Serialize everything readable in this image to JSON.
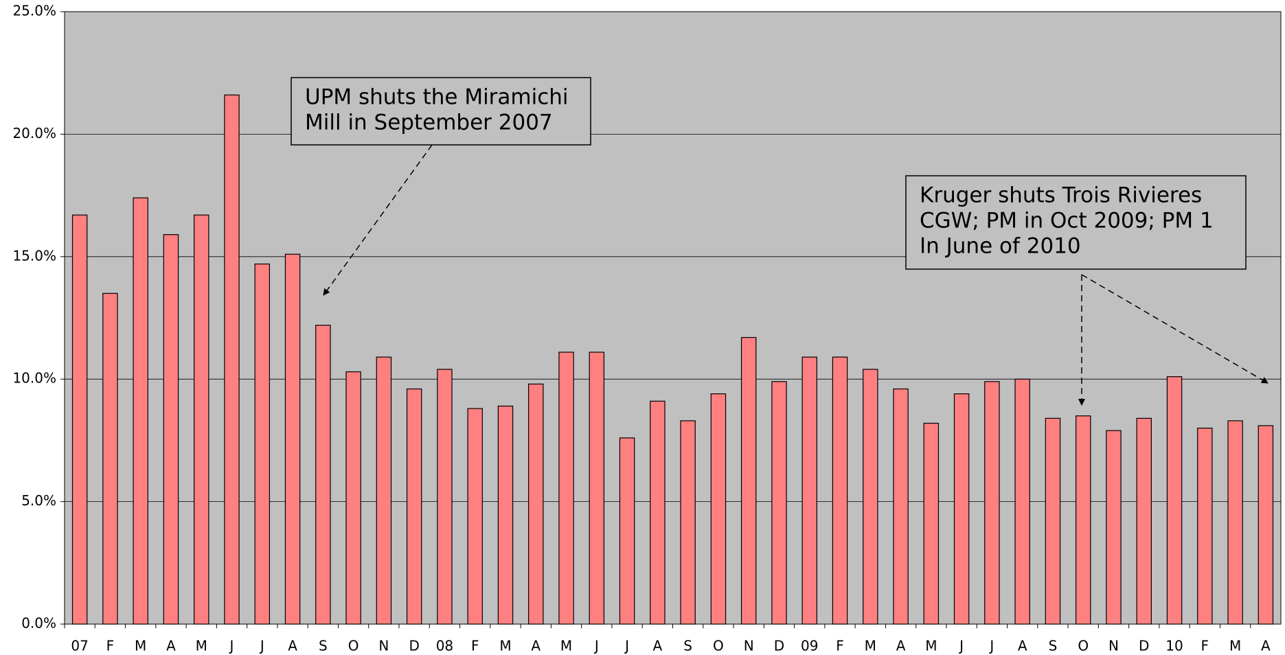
{
  "chart_data": {
    "type": "bar",
    "categories": [
      "07",
      "F",
      "M",
      "A",
      "M",
      "J",
      "J",
      "A",
      "S",
      "O",
      "N",
      "D",
      "08",
      "F",
      "M",
      "A",
      "M",
      "J",
      "J",
      "A",
      "S",
      "O",
      "N",
      "D",
      "09",
      "F",
      "M",
      "A",
      "M",
      "J",
      "J",
      "A",
      "S",
      "O",
      "N",
      "D",
      "10",
      "F",
      "M",
      "A"
    ],
    "values": [
      16.7,
      13.5,
      17.4,
      15.9,
      16.7,
      21.6,
      14.7,
      15.1,
      12.2,
      10.3,
      10.9,
      9.6,
      10.4,
      8.8,
      8.9,
      9.8,
      11.1,
      11.1,
      7.6,
      9.1,
      8.3,
      9.4,
      11.7,
      9.9,
      10.9,
      10.9,
      10.4,
      9.6,
      8.2,
      9.4,
      9.9,
      10.0,
      8.4,
      8.5,
      7.9,
      8.4,
      10.1,
      8.0,
      8.3,
      8.1
    ],
    "color": "#ff8080",
    "ylim": [
      0,
      25
    ],
    "yticks": [
      {
        "value": 0,
        "label": "0.0%"
      },
      {
        "value": 5,
        "label": "5.0%"
      },
      {
        "value": 10,
        "label": "10.0%"
      },
      {
        "value": 15,
        "label": "15.0%"
      },
      {
        "value": 20,
        "label": "20.0%"
      },
      {
        "value": 25,
        "label": "25.0%"
      }
    ],
    "grid": true,
    "annotations": [
      {
        "lines": [
          "UPM shuts the Miramichi",
          "Mill in September 2007"
        ]
      },
      {
        "lines": [
          "Kruger shuts Trois Rivieres",
          "CGW; PM in Oct 2009; PM 1",
          "In June of 2010"
        ]
      }
    ]
  }
}
